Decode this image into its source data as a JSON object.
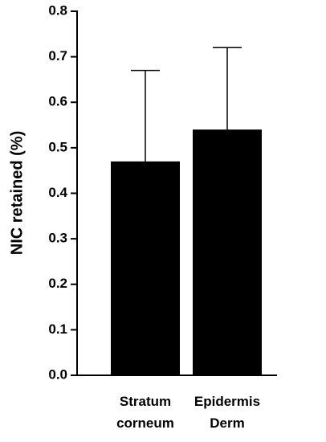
{
  "chart_data": {
    "type": "bar",
    "y_label": "NIC retained (%)",
    "categories": [
      "Stratum corneum",
      "Epidermis Derm"
    ],
    "values": [
      0.47,
      0.54
    ],
    "errors": [
      0.2,
      0.18
    ],
    "color": "#000000",
    "ylim": [
      0,
      0.8
    ],
    "yticks": [
      {
        "value": 0,
        "label": "0.0"
      },
      0.1,
      0.2,
      0.3,
      0.4,
      0.5,
      0.6,
      0.7,
      0.8
    ]
  }
}
